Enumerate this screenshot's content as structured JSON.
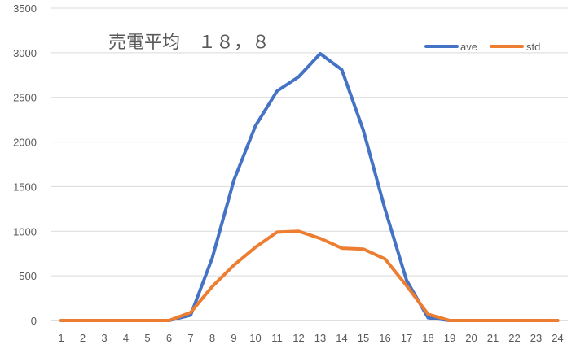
{
  "chart_data": {
    "type": "line",
    "title": "売電平均　１８，８",
    "xlabel": "",
    "ylabel": "",
    "x": [
      "1",
      "2",
      "3",
      "4",
      "5",
      "6",
      "7",
      "8",
      "9",
      "10",
      "11",
      "12",
      "13",
      "14",
      "15",
      "16",
      "17",
      "18",
      "19",
      "20",
      "21",
      "22",
      "23",
      "24"
    ],
    "ylim": [
      0,
      3500
    ],
    "yticks": [
      0,
      500,
      1000,
      1500,
      2000,
      2500,
      3000,
      3500
    ],
    "grid": true,
    "legend": "top-right",
    "series": [
      {
        "name": "ave",
        "color": "#4472C4",
        "values": [
          0,
          0,
          0,
          0,
          0,
          0,
          60,
          700,
          1570,
          2180,
          2570,
          2730,
          2990,
          2810,
          2130,
          1250,
          450,
          30,
          0,
          0,
          0,
          0,
          0,
          0
        ]
      },
      {
        "name": "std",
        "color": "#ED7D31",
        "values": [
          0,
          0,
          0,
          0,
          0,
          0,
          90,
          380,
          620,
          820,
          990,
          1000,
          920,
          810,
          800,
          690,
          390,
          70,
          0,
          0,
          0,
          0,
          0,
          0
        ]
      }
    ],
    "colors": {
      "grid": "#D9D9D9",
      "axis": "#BFBFBF",
      "text": "#595959"
    }
  }
}
